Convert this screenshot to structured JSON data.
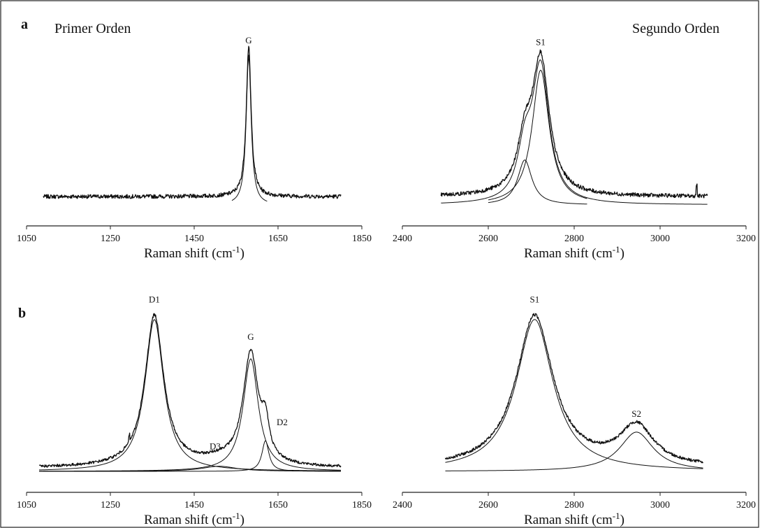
{
  "figure": {
    "row_a_label": "a",
    "row_b_label": "b",
    "first_order_label": "Primer Orden",
    "second_order_label": "Segundo Orden"
  },
  "chart_data": [
    {
      "id": "a-first",
      "type": "line",
      "xlabel": "Raman shift (cm",
      "xlabel_sup": "-1",
      "xlabel_close": ")",
      "xlim": [
        1050,
        1850
      ],
      "xticks": [
        1050,
        1250,
        1450,
        1650,
        1850
      ],
      "ylim": [
        0,
        1
      ],
      "grid": false,
      "series": [
        {
          "kind": "spectrum",
          "baseline": 0.05,
          "noise": 0.012,
          "peaks": [
            {
              "center": 1580,
              "amp": 0.9,
              "width": 7
            }
          ],
          "xrange": [
            1090,
            1800
          ]
        },
        {
          "kind": "fit",
          "peaks": [
            {
              "center": 1580,
              "amp": 0.9,
              "width": 7
            }
          ],
          "xrange": [
            1540,
            1625
          ]
        }
      ],
      "annotations": [
        {
          "text": "G",
          "x": 1580,
          "y": 0.97
        }
      ]
    },
    {
      "id": "a-second",
      "type": "line",
      "xlabel": "Raman shift (cm",
      "xlabel_sup": "-1",
      "xlabel_close": ")",
      "xlim": [
        2400,
        3200
      ],
      "xticks": [
        2400,
        2600,
        2800,
        3000,
        3200
      ],
      "ylim": [
        0,
        1
      ],
      "grid": false,
      "series": [
        {
          "kind": "spectrum",
          "baseline": 0.05,
          "noise": 0.012,
          "peaks": [
            {
              "center": 2722,
              "amp": 0.81,
              "width": 24
            },
            {
              "center": 2685,
              "amp": 0.27,
              "width": 20
            }
          ],
          "xrange": [
            2490,
            3110
          ],
          "spike": {
            "x": 3085,
            "amp": 0.07
          }
        },
        {
          "kind": "fit",
          "peaks": [
            {
              "center": 2722,
              "amp": 0.81,
              "width": 24
            }
          ],
          "xrange": [
            2600,
            2830
          ]
        },
        {
          "kind": "fit",
          "peaks": [
            {
              "center": 2685,
              "amp": 0.27,
              "width": 20
            }
          ],
          "xrange": [
            2600,
            2830
          ]
        },
        {
          "kind": "fit",
          "peaks": [
            {
              "center": 2722,
              "amp": 0.81,
              "width": 24
            },
            {
              "center": 2685,
              "amp": 0.27,
              "width": 20
            }
          ],
          "xrange": [
            2490,
            3110
          ]
        }
      ],
      "annotations": [
        {
          "text": "S1",
          "x": 2722,
          "y": 0.96
        }
      ]
    },
    {
      "id": "b-first",
      "type": "line",
      "xlabel": "Raman shift (cm",
      "xlabel_sup": "-1",
      "xlabel_close": ")",
      "xlim": [
        1050,
        1850
      ],
      "xticks": [
        1050,
        1250,
        1450,
        1650,
        1850
      ],
      "ylim": [
        0,
        1
      ],
      "grid": false,
      "series": [
        {
          "kind": "spectrum",
          "baseline": 0.02,
          "noise": 0.008,
          "peaks": [
            {
              "center": 1355,
              "amp": 0.89,
              "width": 27
            },
            {
              "center": 1585,
              "amp": 0.66,
              "width": 22
            },
            {
              "center": 1620,
              "amp": 0.18,
              "width": 10
            },
            {
              "center": 1510,
              "amp": 0.03,
              "width": 50
            }
          ],
          "xrange": [
            1080,
            1800
          ],
          "spike": {
            "x": 1295,
            "amp": 0.04
          }
        },
        {
          "kind": "fit",
          "peaks": [
            {
              "center": 1355,
              "amp": 0.89,
              "width": 27
            }
          ],
          "xrange": [
            1080,
            1800
          ]
        },
        {
          "kind": "fit",
          "peaks": [
            {
              "center": 1585,
              "amp": 0.66,
              "width": 22
            }
          ],
          "xrange": [
            1080,
            1800
          ]
        },
        {
          "kind": "fit",
          "peaks": [
            {
              "center": 1620,
              "amp": 0.18,
              "width": 10
            }
          ],
          "xrange": [
            1080,
            1800
          ]
        },
        {
          "kind": "fit",
          "peaks": [
            {
              "center": 1510,
              "amp": 0.03,
              "width": 50
            }
          ],
          "xrange": [
            1080,
            1800
          ]
        }
      ],
      "annotations": [
        {
          "text": "D1",
          "x": 1355,
          "y": 0.99
        },
        {
          "text": "G",
          "x": 1585,
          "y": 0.77
        },
        {
          "text": "D3",
          "x": 1500,
          "y": 0.13
        },
        {
          "text": "D2",
          "x": 1660,
          "y": 0.27
        }
      ]
    },
    {
      "id": "b-second",
      "type": "line",
      "xlabel": "Raman shift (cm",
      "xlabel_sup": "-1",
      "xlabel_close": ")",
      "xlim": [
        2400,
        3200
      ],
      "xticks": [
        2400,
        2600,
        2800,
        3000,
        3200
      ],
      "ylim": [
        0,
        1
      ],
      "grid": false,
      "series": [
        {
          "kind": "spectrum",
          "baseline": 0.02,
          "noise": 0.009,
          "peaks": [
            {
              "center": 2708,
              "amp": 0.89,
              "width": 52
            },
            {
              "center": 2945,
              "amp": 0.23,
              "width": 48
            }
          ],
          "xrange": [
            2500,
            3100
          ]
        },
        {
          "kind": "fit",
          "peaks": [
            {
              "center": 2708,
              "amp": 0.89,
              "width": 52
            }
          ],
          "xrange": [
            2500,
            3100
          ]
        },
        {
          "kind": "fit",
          "peaks": [
            {
              "center": 2945,
              "amp": 0.23,
              "width": 48
            }
          ],
          "xrange": [
            2500,
            3100
          ]
        }
      ],
      "annotations": [
        {
          "text": "S1",
          "x": 2708,
          "y": 0.99
        },
        {
          "text": "S2",
          "x": 2945,
          "y": 0.32
        }
      ]
    }
  ]
}
